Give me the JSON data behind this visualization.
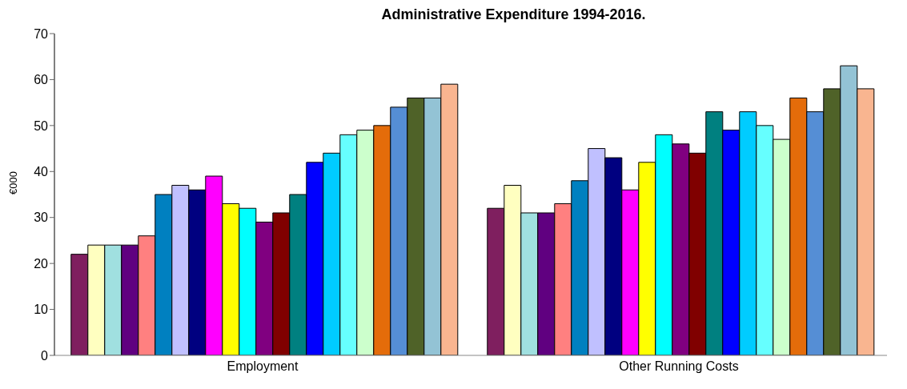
{
  "chart_data": {
    "type": "bar",
    "title": "Administrative Expenditure 1994-2016.",
    "ylabel": "€000",
    "categories": [
      "Employment",
      "Other Running Costs"
    ],
    "series": [
      {
        "color": "#7f1f5f",
        "values": [
          22,
          32
        ]
      },
      {
        "color": "#ffffc0",
        "values": [
          24,
          37
        ]
      },
      {
        "color": "#a0e0e0",
        "values": [
          24,
          31
        ]
      },
      {
        "color": "#600080",
        "values": [
          24,
          31
        ]
      },
      {
        "color": "#ff8080",
        "values": [
          26,
          33
        ]
      },
      {
        "color": "#0080c0",
        "values": [
          35,
          38
        ]
      },
      {
        "color": "#c0c0ff",
        "values": [
          37,
          45
        ]
      },
      {
        "color": "#000080",
        "values": [
          36,
          43
        ]
      },
      {
        "color": "#ff00ff",
        "values": [
          39,
          36
        ]
      },
      {
        "color": "#ffff00",
        "values": [
          33,
          42
        ]
      },
      {
        "color": "#00ffff",
        "values": [
          32,
          48
        ]
      },
      {
        "color": "#800080",
        "values": [
          29,
          46
        ]
      },
      {
        "color": "#800000",
        "values": [
          31,
          44
        ]
      },
      {
        "color": "#008080",
        "values": [
          35,
          53
        ]
      },
      {
        "color": "#0000ff",
        "values": [
          42,
          49
        ]
      },
      {
        "color": "#00ccff",
        "values": [
          44,
          53
        ]
      },
      {
        "color": "#66ffff",
        "values": [
          48,
          50
        ]
      },
      {
        "color": "#ccffcc",
        "values": [
          49,
          47
        ]
      },
      {
        "color": "#e46c0a",
        "values": [
          50,
          56
        ]
      },
      {
        "color": "#558ed5",
        "values": [
          54,
          53
        ]
      },
      {
        "color": "#4f6228",
        "values": [
          56,
          58
        ]
      },
      {
        "color": "#93c3d5",
        "values": [
          56,
          63
        ]
      },
      {
        "color": "#f9b590",
        "values": [
          59,
          58
        ]
      }
    ],
    "ylim": [
      0,
      70
    ],
    "yticks": [
      0,
      10,
      20,
      30,
      40,
      50,
      60,
      70
    ],
    "grid": false,
    "legend": false
  }
}
